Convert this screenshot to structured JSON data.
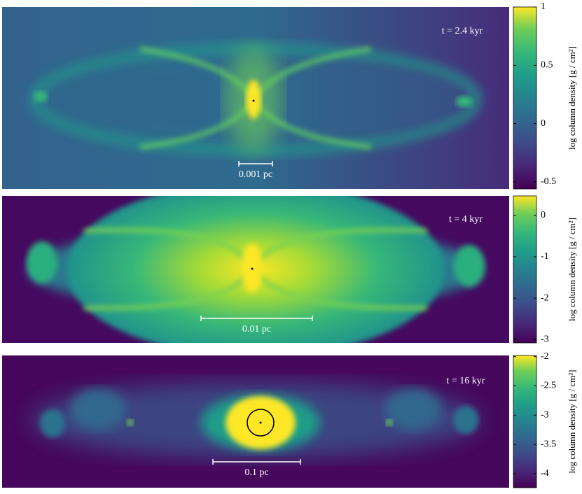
{
  "chart_data": [
    {
      "type": "image",
      "time_label": "t = 2.4 kyr",
      "scale_label": "0.001 pc",
      "colorbar_label": "log column density [g / cm²]",
      "clim": [
        -0.56,
        1
      ],
      "cticks": [
        1,
        0.5,
        0,
        -0.5
      ]
    },
    {
      "type": "image",
      "time_label": "t = 4 kyr",
      "scale_label": "0.01 pc",
      "colorbar_label": "log column density [g / cm²]",
      "clim": [
        -3.08,
        0.47
      ],
      "cticks": [
        0,
        -1,
        -2,
        -3
      ]
    },
    {
      "type": "image",
      "time_label": "t = 16 kyr",
      "scale_label": "0.1 pc",
      "colorbar_label": "log column density [g / cm²]",
      "clim": [
        -4.24,
        -1.98
      ],
      "cticks": [
        -2,
        -2.5,
        -3,
        -3.5,
        -4
      ]
    }
  ]
}
